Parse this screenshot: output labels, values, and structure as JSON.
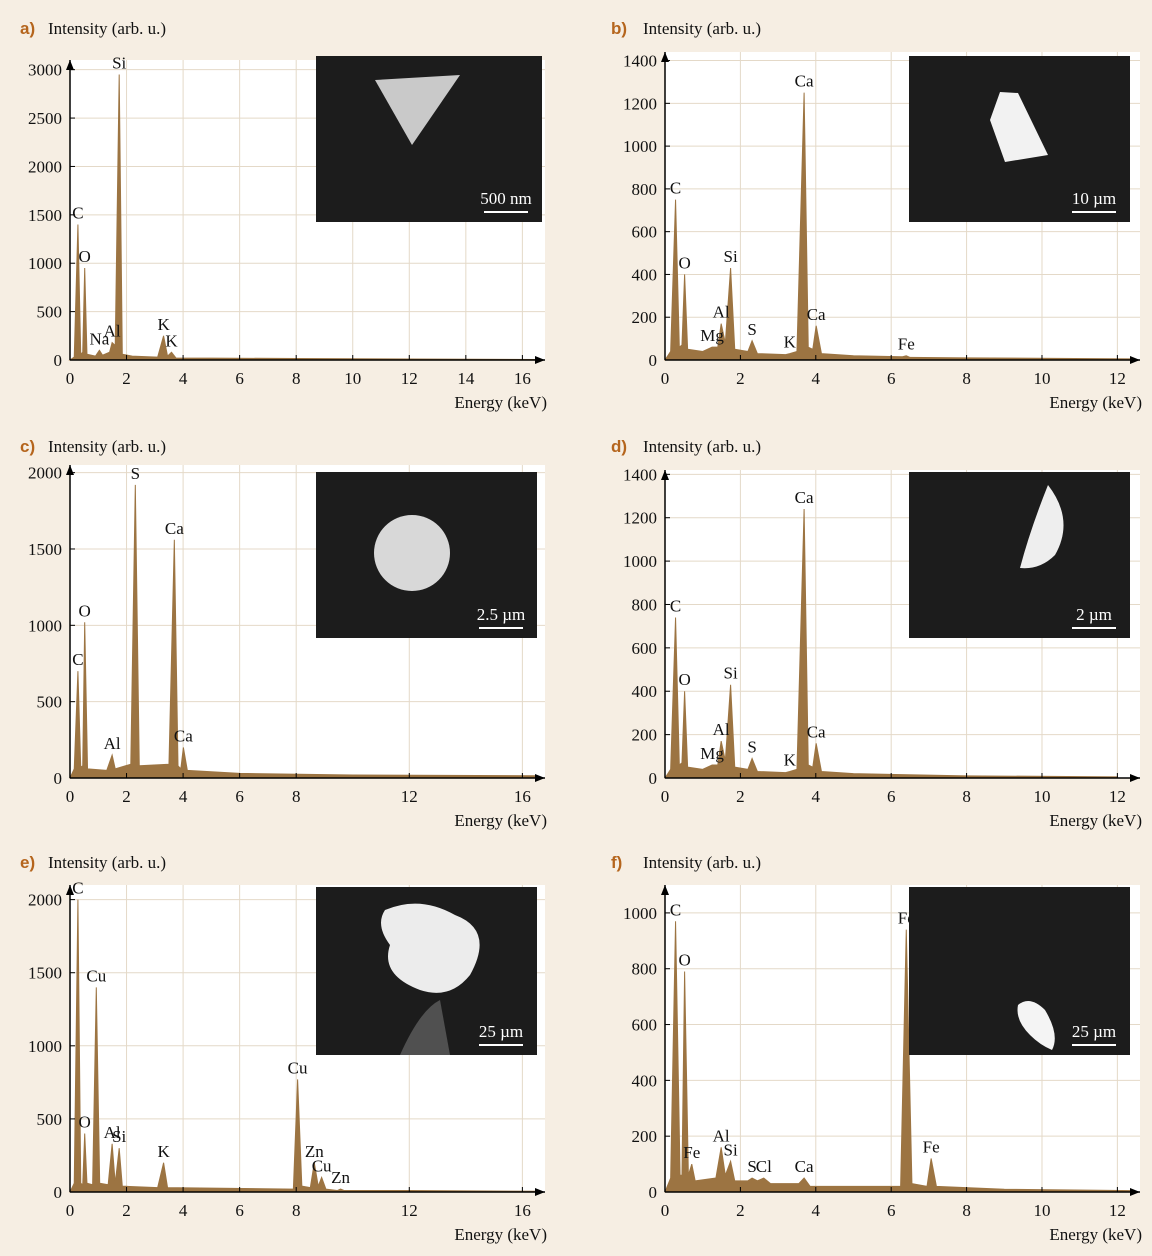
{
  "chart_data": [
    {
      "type": "area",
      "panel_label": "a)",
      "y_label": "Intensity (arb. u.)",
      "x_label": "Energy (keV)",
      "color": "#9c7442",
      "x": [
        0,
        0.15,
        0.28,
        0.38,
        0.45,
        0.52,
        0.6,
        0.9,
        1.04,
        1.15,
        1.4,
        1.49,
        1.6,
        1.74,
        1.85,
        2.2,
        3.1,
        3.31,
        3.45,
        3.59,
        3.75,
        5,
        8,
        12,
        16.5
      ],
      "values": [
        0,
        30,
        1400,
        60,
        80,
        950,
        60,
        40,
        100,
        50,
        80,
        180,
        150,
        2950,
        60,
        40,
        30,
        250,
        40,
        80,
        20,
        20,
        15,
        10,
        5
      ],
      "xlim": [
        0,
        16.8
      ],
      "ylim": [
        0,
        3100
      ],
      "xticks": [
        0,
        2,
        4,
        6,
        8,
        10,
        12,
        14,
        16
      ],
      "yticks": [
        0,
        500,
        1000,
        1500,
        2000,
        2500,
        3000
      ],
      "grid": true,
      "annotations": [
        {
          "text": "C",
          "x": 0.28,
          "y": 1400
        },
        {
          "text": "O",
          "x": 0.52,
          "y": 950
        },
        {
          "text": "Na",
          "x": 1.04,
          "y": 100
        },
        {
          "text": "Al",
          "x": 1.49,
          "y": 180
        },
        {
          "text": "Si",
          "x": 1.74,
          "y": 2950
        },
        {
          "text": "K",
          "x": 3.31,
          "y": 250
        },
        {
          "text": "K",
          "x": 3.59,
          "y": 80
        }
      ],
      "inset_scale": "500 nm"
    },
    {
      "type": "area",
      "panel_label": "b)",
      "y_label": "Intensity (arb. u.)",
      "x_label": "Energy (keV)",
      "color": "#9c7442",
      "x": [
        0,
        0.15,
        0.28,
        0.38,
        0.45,
        0.52,
        0.6,
        1.0,
        1.25,
        1.4,
        1.49,
        1.6,
        1.74,
        1.85,
        2.2,
        2.31,
        2.45,
        3.2,
        3.31,
        3.5,
        3.69,
        3.8,
        3.92,
        4.01,
        4.15,
        5,
        6.3,
        6.4,
        6.5,
        8,
        12.4
      ],
      "values": [
        0,
        40,
        750,
        60,
        70,
        400,
        50,
        40,
        60,
        60,
        170,
        80,
        430,
        50,
        40,
        90,
        30,
        25,
        30,
        40,
        1250,
        60,
        50,
        160,
        30,
        20,
        15,
        20,
        12,
        10,
        5
      ],
      "xlim": [
        0,
        12.6
      ],
      "ylim": [
        0,
        1440
      ],
      "xticks": [
        0,
        2,
        4,
        6,
        8,
        10,
        12
      ],
      "yticks": [
        0,
        200,
        400,
        600,
        800,
        1000,
        1200,
        1400
      ],
      "grid": true,
      "annotations": [
        {
          "text": "C",
          "x": 0.28,
          "y": 750
        },
        {
          "text": "O",
          "x": 0.52,
          "y": 400
        },
        {
          "text": "Mg",
          "x": 1.25,
          "y": 60
        },
        {
          "text": "Al",
          "x": 1.49,
          "y": 170
        },
        {
          "text": "Si",
          "x": 1.74,
          "y": 430
        },
        {
          "text": "S",
          "x": 2.31,
          "y": 90
        },
        {
          "text": "K",
          "x": 3.31,
          "y": 30
        },
        {
          "text": "Ca",
          "x": 3.69,
          "y": 1250
        },
        {
          "text": "Ca",
          "x": 4.01,
          "y": 160
        },
        {
          "text": "Fe",
          "x": 6.4,
          "y": 20
        }
      ],
      "inset_scale": "10 µm"
    },
    {
      "type": "area",
      "panel_label": "c)",
      "y_label": "Intensity (arb. u.)",
      "x_label": "Energy (keV)",
      "color": "#9c7442",
      "x": [
        0,
        0.15,
        0.28,
        0.38,
        0.45,
        0.52,
        0.62,
        1.3,
        1.49,
        1.6,
        2.15,
        2.31,
        2.45,
        3.5,
        3.69,
        3.82,
        3.92,
        4.01,
        4.15,
        6,
        10,
        16.5
      ],
      "values": [
        0,
        60,
        700,
        70,
        80,
        1020,
        60,
        50,
        150,
        60,
        90,
        1920,
        80,
        90,
        1560,
        80,
        60,
        200,
        50,
        30,
        20,
        15
      ],
      "xlim": [
        0,
        16.8
      ],
      "ylim": [
        0,
        2050
      ],
      "xticks": [
        0,
        2,
        4,
        6,
        8,
        12,
        16
      ],
      "yticks": [
        0,
        500,
        1000,
        1500,
        2000
      ],
      "grid": true,
      "annotations": [
        {
          "text": "C",
          "x": 0.28,
          "y": 700
        },
        {
          "text": "O",
          "x": 0.52,
          "y": 1020
        },
        {
          "text": "Al",
          "x": 1.49,
          "y": 150
        },
        {
          "text": "S",
          "x": 2.31,
          "y": 1920
        },
        {
          "text": "Ca",
          "x": 3.69,
          "y": 1560
        },
        {
          "text": "Ca",
          "x": 4.01,
          "y": 200
        }
      ],
      "inset_scale": "2.5 µm"
    },
    {
      "type": "area",
      "panel_label": "d)",
      "y_label": "Intensity (arb. u.)",
      "x_label": "Energy (keV)",
      "color": "#9c7442",
      "x": [
        0,
        0.15,
        0.28,
        0.38,
        0.45,
        0.52,
        0.6,
        1.0,
        1.25,
        1.4,
        1.49,
        1.6,
        1.74,
        1.85,
        2.2,
        2.31,
        2.45,
        3.2,
        3.31,
        3.5,
        3.69,
        3.8,
        3.92,
        4.01,
        4.15,
        5,
        8,
        12
      ],
      "values": [
        0,
        40,
        740,
        60,
        70,
        400,
        50,
        40,
        60,
        60,
        170,
        80,
        430,
        50,
        40,
        90,
        30,
        25,
        30,
        40,
        1240,
        60,
        50,
        160,
        30,
        20,
        10,
        5
      ],
      "xlim": [
        0,
        12.6
      ],
      "ylim": [
        0,
        1420
      ],
      "xticks": [
        0,
        2,
        4,
        6,
        8,
        10,
        12
      ],
      "yticks": [
        0,
        200,
        400,
        600,
        800,
        1000,
        1200,
        1400
      ],
      "grid": true,
      "annotations": [
        {
          "text": "C",
          "x": 0.28,
          "y": 740
        },
        {
          "text": "O",
          "x": 0.52,
          "y": 400
        },
        {
          "text": "Mg",
          "x": 1.25,
          "y": 60
        },
        {
          "text": "Al",
          "x": 1.49,
          "y": 170
        },
        {
          "text": "Si",
          "x": 1.74,
          "y": 430
        },
        {
          "text": "S",
          "x": 2.31,
          "y": 90
        },
        {
          "text": "K",
          "x": 3.31,
          "y": 30
        },
        {
          "text": "Ca",
          "x": 3.69,
          "y": 1240
        },
        {
          "text": "Ca",
          "x": 4.01,
          "y": 160
        }
      ],
      "inset_scale": "2 µm"
    },
    {
      "type": "area",
      "panel_label": "e)",
      "y_label": "Intensity (arb. u.)",
      "x_label": "Energy (keV)",
      "color": "#9c7442",
      "x": [
        0,
        0.15,
        0.28,
        0.38,
        0.45,
        0.52,
        0.6,
        0.8,
        0.93,
        1.05,
        1.35,
        1.49,
        1.6,
        1.74,
        1.85,
        3.1,
        3.31,
        3.45,
        7.9,
        8.05,
        8.2,
        8.5,
        8.64,
        8.78,
        8.9,
        9.05,
        9.45,
        9.57,
        9.7,
        12,
        16.5
      ],
      "values": [
        0,
        60,
        2000,
        60,
        50,
        400,
        60,
        50,
        1400,
        60,
        50,
        330,
        60,
        300,
        40,
        30,
        200,
        30,
        20,
        770,
        40,
        30,
        200,
        40,
        100,
        20,
        10,
        20,
        10,
        10,
        5
      ],
      "xlim": [
        0,
        16.8
      ],
      "ylim": [
        0,
        2100
      ],
      "xticks": [
        0,
        2,
        4,
        6,
        8,
        12,
        16
      ],
      "yticks": [
        0,
        500,
        1000,
        1500,
        2000
      ],
      "grid": true,
      "annotations": [
        {
          "text": "C",
          "x": 0.28,
          "y": 2000
        },
        {
          "text": "O",
          "x": 0.52,
          "y": 400
        },
        {
          "text": "Cu",
          "x": 0.93,
          "y": 1400
        },
        {
          "text": "Al",
          "x": 1.49,
          "y": 330
        },
        {
          "text": "Si",
          "x": 1.74,
          "y": 300
        },
        {
          "text": "K",
          "x": 3.31,
          "y": 200
        },
        {
          "text": "Cu",
          "x": 8.05,
          "y": 770
        },
        {
          "text": "Zn",
          "x": 8.64,
          "y": 200
        },
        {
          "text": "Cu",
          "x": 8.9,
          "y": 100
        },
        {
          "text": "Zn",
          "x": 9.57,
          "y": 20
        }
      ],
      "inset_scale": "25 µm"
    },
    {
      "type": "area",
      "panel_label": "f)",
      "y_label": "Intensity (arb. u.)",
      "x_label": "Energy (keV)",
      "color": "#9c7442",
      "x": [
        0,
        0.15,
        0.28,
        0.4,
        0.45,
        0.52,
        0.62,
        0.71,
        0.8,
        1.35,
        1.49,
        1.6,
        1.74,
        1.85,
        2.2,
        2.31,
        2.45,
        2.62,
        2.8,
        3.55,
        3.69,
        3.85,
        6.25,
        6.4,
        6.55,
        6.95,
        7.06,
        7.2,
        9,
        12.4
      ],
      "values": [
        0,
        50,
        970,
        60,
        60,
        790,
        60,
        100,
        40,
        50,
        160,
        60,
        110,
        40,
        40,
        50,
        40,
        50,
        30,
        30,
        50,
        20,
        20,
        940,
        30,
        20,
        120,
        20,
        10,
        5
      ],
      "xlim": [
        0,
        12.6
      ],
      "ylim": [
        0,
        1100
      ],
      "xticks": [
        0,
        2,
        4,
        6,
        8,
        10,
        12
      ],
      "yticks": [
        0,
        200,
        400,
        600,
        800,
        1000
      ],
      "grid": true,
      "annotations": [
        {
          "text": "C",
          "x": 0.28,
          "y": 970
        },
        {
          "text": "O",
          "x": 0.52,
          "y": 790
        },
        {
          "text": "Fe",
          "x": 0.71,
          "y": 100
        },
        {
          "text": "Al",
          "x": 1.49,
          "y": 160
        },
        {
          "text": "Si",
          "x": 1.74,
          "y": 110
        },
        {
          "text": "S",
          "x": 2.31,
          "y": 50
        },
        {
          "text": "Cl",
          "x": 2.62,
          "y": 50
        },
        {
          "text": "Ca",
          "x": 3.69,
          "y": 50
        },
        {
          "text": "Fe",
          "x": 6.4,
          "y": 940
        },
        {
          "text": "Fe",
          "x": 7.06,
          "y": 120
        }
      ],
      "inset_scale": "25 µm"
    }
  ]
}
